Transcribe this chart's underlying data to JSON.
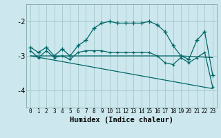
{
  "xlabel": "Humidex (Indice chaleur)",
  "bg_color": "#cce8ee",
  "grid_color": "#aacccc",
  "line_color": "#006666",
  "xlim": [
    -0.5,
    23.5
  ],
  "ylim": [
    -4.5,
    -1.5
  ],
  "yticks": [
    -4,
    -3,
    -2
  ],
  "xticks": [
    0,
    1,
    2,
    3,
    4,
    5,
    6,
    7,
    8,
    9,
    10,
    11,
    12,
    13,
    14,
    15,
    16,
    17,
    18,
    19,
    20,
    21,
    22,
    23
  ],
  "series1_x": [
    0,
    1,
    2,
    3,
    4,
    5,
    6,
    7,
    8,
    9,
    10,
    11,
    12,
    13,
    14,
    15,
    16,
    17,
    18,
    19,
    20,
    21,
    22,
    23
  ],
  "series1_y": [
    -2.75,
    -2.9,
    -2.75,
    -3.0,
    -2.8,
    -3.0,
    -2.7,
    -2.55,
    -2.2,
    -2.05,
    -2.0,
    -2.05,
    -2.05,
    -2.05,
    -2.05,
    -2.0,
    -2.1,
    -2.3,
    -2.7,
    -3.0,
    -3.1,
    -2.55,
    -2.3,
    -3.55
  ],
  "series2_x": [
    0,
    1,
    2,
    3,
    4,
    5,
    6,
    7,
    8,
    9,
    10,
    11,
    12,
    13,
    14,
    15,
    16,
    17,
    18,
    19,
    20,
    21,
    22,
    23
  ],
  "series2_y": [
    -2.85,
    -3.05,
    -2.85,
    -3.05,
    -3.0,
    -3.1,
    -2.9,
    -2.85,
    -2.85,
    -2.85,
    -2.9,
    -2.9,
    -2.9,
    -2.9,
    -2.9,
    -2.9,
    -3.0,
    -3.2,
    -3.25,
    -3.05,
    -3.2,
    -3.05,
    -2.9,
    -3.9
  ],
  "series3_x": [
    0,
    23
  ],
  "series3_y": [
    -3.0,
    -3.95
  ],
  "series4_x": [
    0,
    19,
    23
  ],
  "series4_y": [
    -3.0,
    -3.0,
    -3.05
  ]
}
